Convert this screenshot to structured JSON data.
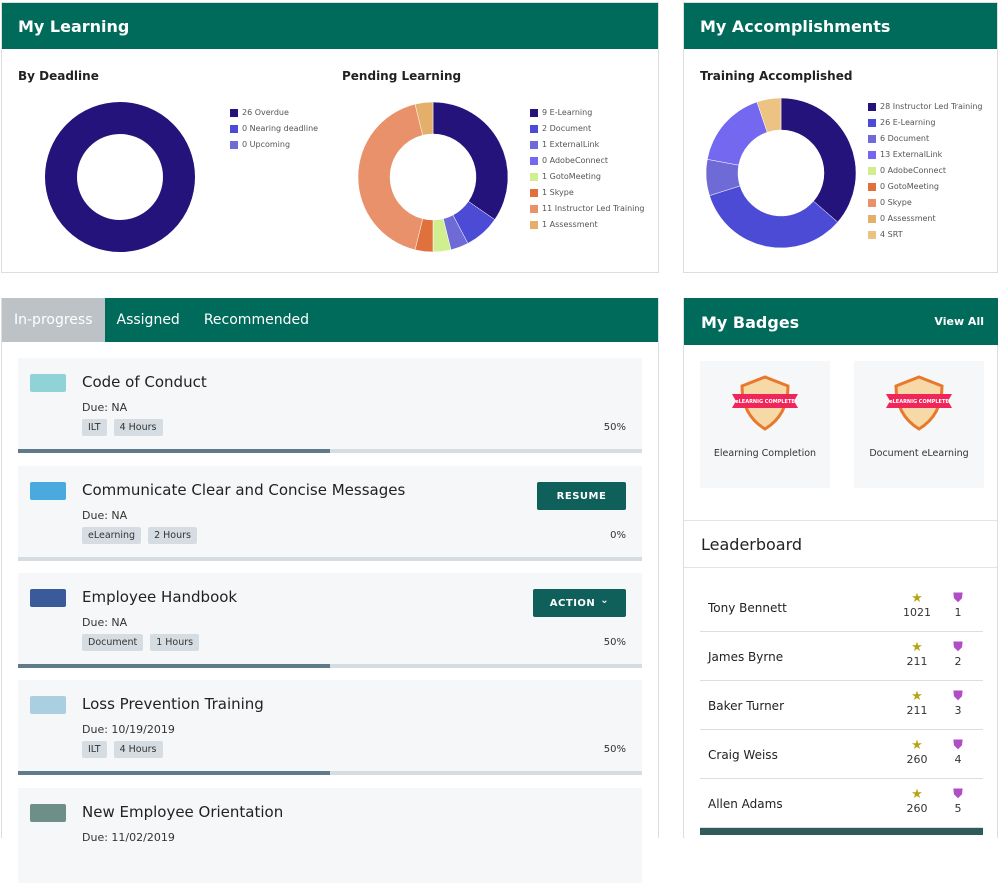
{
  "my_learning": {
    "title": "My Learning",
    "by_deadline": {
      "title": "By Deadline"
    },
    "pending": {
      "title": "Pending Learning"
    }
  },
  "accomplishments": {
    "title": "My Accomplishments",
    "training": {
      "title": "Training Accomplished"
    }
  },
  "chart_data": [
    {
      "type": "pie",
      "title": "By Deadline",
      "donut": true,
      "legend": "right",
      "labels": [
        "26 Overdue",
        "0 Nearing deadline",
        "0 Upcoming"
      ],
      "categories": [
        "Overdue",
        "Nearing deadline",
        "Upcoming"
      ],
      "values": [
        26,
        0,
        0
      ],
      "colors": [
        "#23137a",
        "#4b4bd6",
        "#6e6bd6"
      ]
    },
    {
      "type": "pie",
      "title": "Pending Learning",
      "donut": true,
      "legend": "right",
      "labels": [
        "9 E-Learning",
        "2 Document",
        "1 ExternalLink",
        "0 AdobeConnect",
        "1 GotoMeeting",
        "1 Skype",
        "11 Instructor Led Training",
        "1 Assessment"
      ],
      "categories": [
        "E-Learning",
        "Document",
        "ExternalLink",
        "AdobeConnect",
        "GotoMeeting",
        "Skype",
        "Instructor Led Training",
        "Assessment"
      ],
      "values": [
        9,
        2,
        1,
        0,
        1,
        1,
        11,
        1
      ],
      "colors": [
        "#23137a",
        "#4b4bd6",
        "#6e6bd6",
        "#7468f0",
        "#d1ef91",
        "#e0703c",
        "#e8916a",
        "#e3af6a"
      ]
    },
    {
      "type": "pie",
      "title": "Training Accomplished",
      "donut": true,
      "legend": "right",
      "labels": [
        "28 Instructor Led Training",
        "26 E-Learning",
        "6 Document",
        "13 ExternalLink",
        "0 AdobeConnect",
        "0 GotoMeeting",
        "0 Skype",
        "0 Assessment",
        "4 SRT"
      ],
      "categories": [
        "Instructor Led Training",
        "E-Learning",
        "Document",
        "ExternalLink",
        "AdobeConnect",
        "GotoMeeting",
        "Skype",
        "Assessment",
        "SRT"
      ],
      "values": [
        28,
        26,
        6,
        13,
        0,
        0,
        0,
        0,
        4
      ],
      "colors": [
        "#23137a",
        "#4b4bd6",
        "#6e6bd6",
        "#7468f0",
        "#d1ef91",
        "#e0703c",
        "#e8916a",
        "#e3af6a",
        "#ecc383"
      ]
    }
  ],
  "tabs": [
    "In-progress",
    "Assigned",
    "Recommended"
  ],
  "courses": [
    {
      "title": "Code of Conduct",
      "due": "Due: NA",
      "tags": [
        "ILT",
        "4 Hours"
      ],
      "percent": "50%",
      "progress": 50,
      "button": "",
      "thumb": "#8fd3d6"
    },
    {
      "title": "Communicate Clear and Concise Messages",
      "due": "Due: NA",
      "tags": [
        "eLearning",
        "2 Hours"
      ],
      "percent": "0%",
      "progress": 0,
      "button": "RESUME",
      "thumb": "#4aa9df"
    },
    {
      "title": "Employee Handbook",
      "due": "Due: NA",
      "tags": [
        "Document",
        "1 Hours"
      ],
      "percent": "50%",
      "progress": 50,
      "button": "ACTION",
      "thumb": "#3a5a9a"
    },
    {
      "title": "Loss Prevention Training",
      "due": "Due: 10/19/2019",
      "tags": [
        "ILT",
        "4 Hours"
      ],
      "percent": "50%",
      "progress": 50,
      "button": "",
      "thumb": "#a9cfe0"
    },
    {
      "title": "New Employee Orientation",
      "due": "Due: 11/02/2019",
      "tags": [],
      "percent": "",
      "progress": 0,
      "button": "",
      "thumb": "#6e8f88"
    }
  ],
  "badges": {
    "title": "My Badges",
    "view_all": "View All",
    "items": [
      {
        "name": "Elearning Completion",
        "art_text": "eLEARNIG COMPLETE"
      },
      {
        "name": "Document eLearning",
        "art_text": "eLEARNIG COMPLETE"
      }
    ]
  },
  "leaderboard": {
    "title": "Leaderboard",
    "rows": [
      {
        "name": "Tony Bennett",
        "points": "1021",
        "badges": "1"
      },
      {
        "name": "James Byrne",
        "points": "211",
        "badges": "2"
      },
      {
        "name": "Baker Turner",
        "points": "211",
        "badges": "3"
      },
      {
        "name": "Craig Weiss",
        "points": "260",
        "badges": "4"
      },
      {
        "name": "Allen Adams",
        "points": "260",
        "badges": "5"
      }
    ]
  },
  "colors": {
    "header": "#006b5b",
    "star": "#b5a516",
    "shield": "#b04fc4"
  }
}
